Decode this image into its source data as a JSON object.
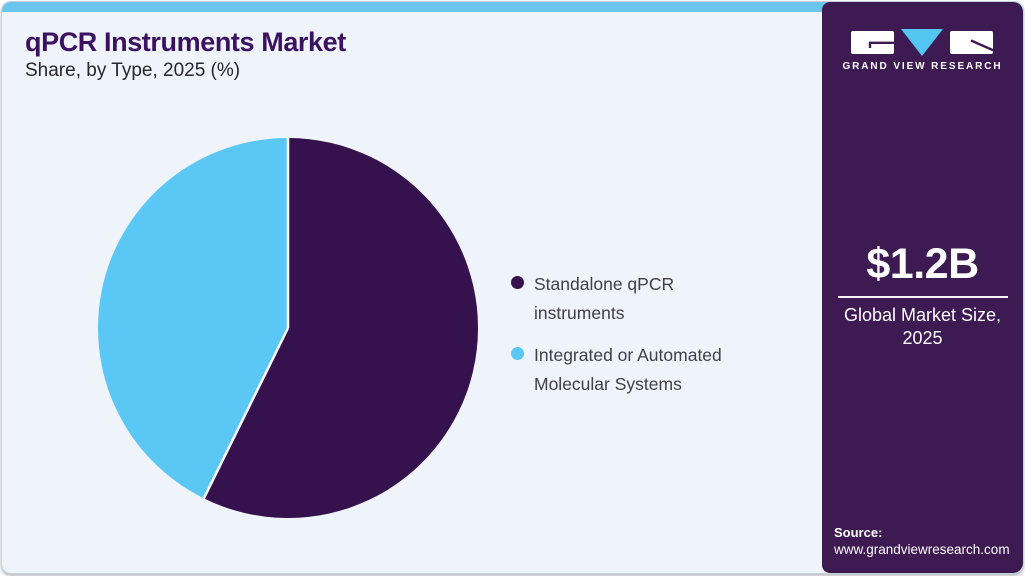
{
  "header": {
    "title": "qPCR Instruments Market",
    "subtitle": "Share, by Type, 2025 (%)"
  },
  "chart_data": {
    "type": "pie",
    "title": "qPCR Instruments Market Share, by Type, 2025 (%)",
    "slices": [
      {
        "label": "Standalone qPCR instruments",
        "value": 57.3,
        "color": "#35114d"
      },
      {
        "label": "Integrated or Automated Molecular Systems",
        "value": 42.7,
        "color": "#5bc7f4"
      }
    ],
    "start_angle": "12-oclock",
    "direction": "clockwise",
    "separator_color": "#ffffff",
    "legend_position": "right-middle"
  },
  "sidebar": {
    "brand": "GRAND VIEW RESEARCH",
    "market_size": "$1.2B",
    "market_size_caption": "Global Market Size, 2025",
    "source_label": "Source:",
    "source_url": "www.grandviewresearch.com",
    "background": "#3d1a52"
  },
  "theme": {
    "top_strip": "#69c5ee",
    "content_bg": "#eef4f9",
    "title_color": "#3b1161",
    "logo_blue": "#52c6f0",
    "logo_white": "#ffffff"
  }
}
